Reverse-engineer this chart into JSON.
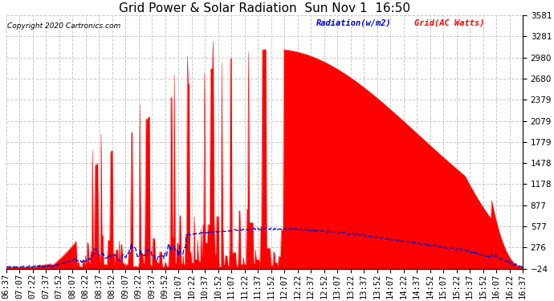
{
  "title": "Grid Power & Solar Radiation  Sun Nov 1  16:50",
  "copyright": "Copyright 2020 Cartronics.com",
  "legend_radiation": "Radiation(w/m2)",
  "legend_grid": "Grid(AC Watts)",
  "ylabel_right_ticks": [
    -24.0,
    276.4,
    576.9,
    877.3,
    1177.7,
    1478.2,
    1778.6,
    2079.0,
    2379.4,
    2679.9,
    2980.3,
    3280.7,
    3581.1
  ],
  "ymin": -24.0,
  "ymax": 3581.1,
  "grid_color": "#c8c8c8",
  "fill_color": "#ff0000",
  "line_color": "#0000cc",
  "background_color": "#ffffff",
  "title_fontsize": 11,
  "tick_fontsize": 7.5,
  "x_labels": [
    "06:37",
    "07:07",
    "07:22",
    "07:37",
    "07:52",
    "08:07",
    "08:22",
    "08:37",
    "08:52",
    "09:07",
    "09:22",
    "09:37",
    "09:52",
    "10:07",
    "10:22",
    "10:37",
    "10:52",
    "11:07",
    "11:22",
    "11:37",
    "11:52",
    "12:07",
    "12:22",
    "12:37",
    "12:52",
    "13:07",
    "13:22",
    "13:37",
    "13:52",
    "14:07",
    "14:22",
    "14:37",
    "14:52",
    "15:07",
    "15:22",
    "15:37",
    "15:52",
    "16:07",
    "16:22",
    "16:37"
  ]
}
